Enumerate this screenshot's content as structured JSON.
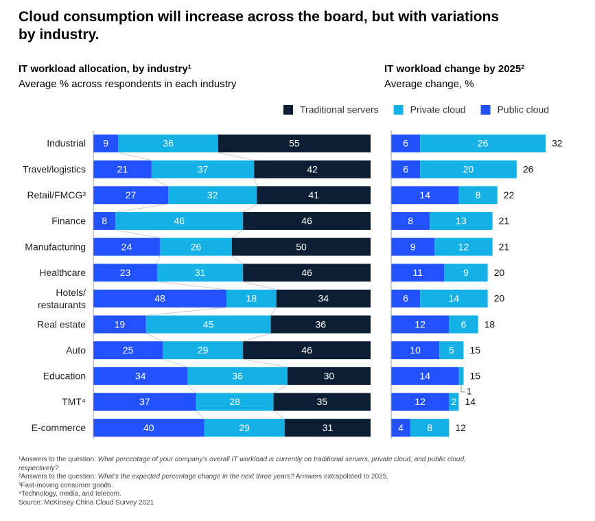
{
  "title": "Cloud consumption will increase across the board, but with variations by industry.",
  "chart_data": [
    {
      "type": "stacked-barh",
      "title": "IT workload allocation, by industry¹",
      "subtitle": "Average % across respondents in each industry",
      "categories": [
        "Industrial",
        "Travel/logistics",
        "Retail/FMCG³",
        "Finance",
        "Manufacturing",
        "Healthcare",
        "Hotels/ restaurants",
        "Real estate",
        "Auto",
        "Education",
        "TMT⁴",
        "E-commerce"
      ],
      "xlim": [
        0,
        100
      ],
      "series": [
        {
          "name": "Public cloud",
          "color": "#2251ff",
          "values": [
            9,
            21,
            27,
            8,
            24,
            23,
            48,
            19,
            25,
            34,
            37,
            40
          ]
        },
        {
          "name": "Private cloud",
          "color": "#14b1e7",
          "values": [
            36,
            37,
            32,
            46,
            26,
            31,
            18,
            45,
            29,
            36,
            28,
            29
          ]
        },
        {
          "name": "Traditional servers",
          "color": "#0b1e33",
          "values": [
            55,
            42,
            41,
            46,
            50,
            46,
            34,
            36,
            46,
            30,
            35,
            31
          ]
        }
      ]
    },
    {
      "type": "stacked-barh",
      "title": "IT workload change by 2025²",
      "subtitle": "Average change, %",
      "xlim": [
        0,
        32
      ],
      "series": [
        {
          "color": "#2251ff",
          "values": [
            6,
            6,
            14,
            8,
            9,
            11,
            6,
            12,
            10,
            14,
            12,
            4
          ]
        },
        {
          "color": "#14b1e7",
          "values": [
            26,
            20,
            8,
            13,
            12,
            9,
            14,
            6,
            5,
            1,
            2,
            8
          ]
        }
      ],
      "totals": [
        32,
        26,
        22,
        21,
        21,
        20,
        20,
        18,
        15,
        15,
        14,
        12
      ]
    }
  ],
  "footnotes": [
    [
      {
        "text": "¹Answers to the question: "
      },
      {
        "text": "What percentage of your company's overall IT workload is currently on traditional servers, private cloud, and public cloud, respectively?",
        "italic": true
      }
    ],
    [
      {
        "text": "²Answers to the question: "
      },
      {
        "text": "What's the expected percentage change in the next three years?",
        "italic": true
      },
      {
        "text": " Answers extrapolated to 2025."
      }
    ],
    [
      {
        "text": "³Fast-moving consumer goods."
      }
    ],
    [
      {
        "text": "⁴Technology, media, and telecom."
      }
    ],
    [
      {
        "text": " Source: McKinsey China Cloud Survey 2021"
      }
    ]
  ]
}
